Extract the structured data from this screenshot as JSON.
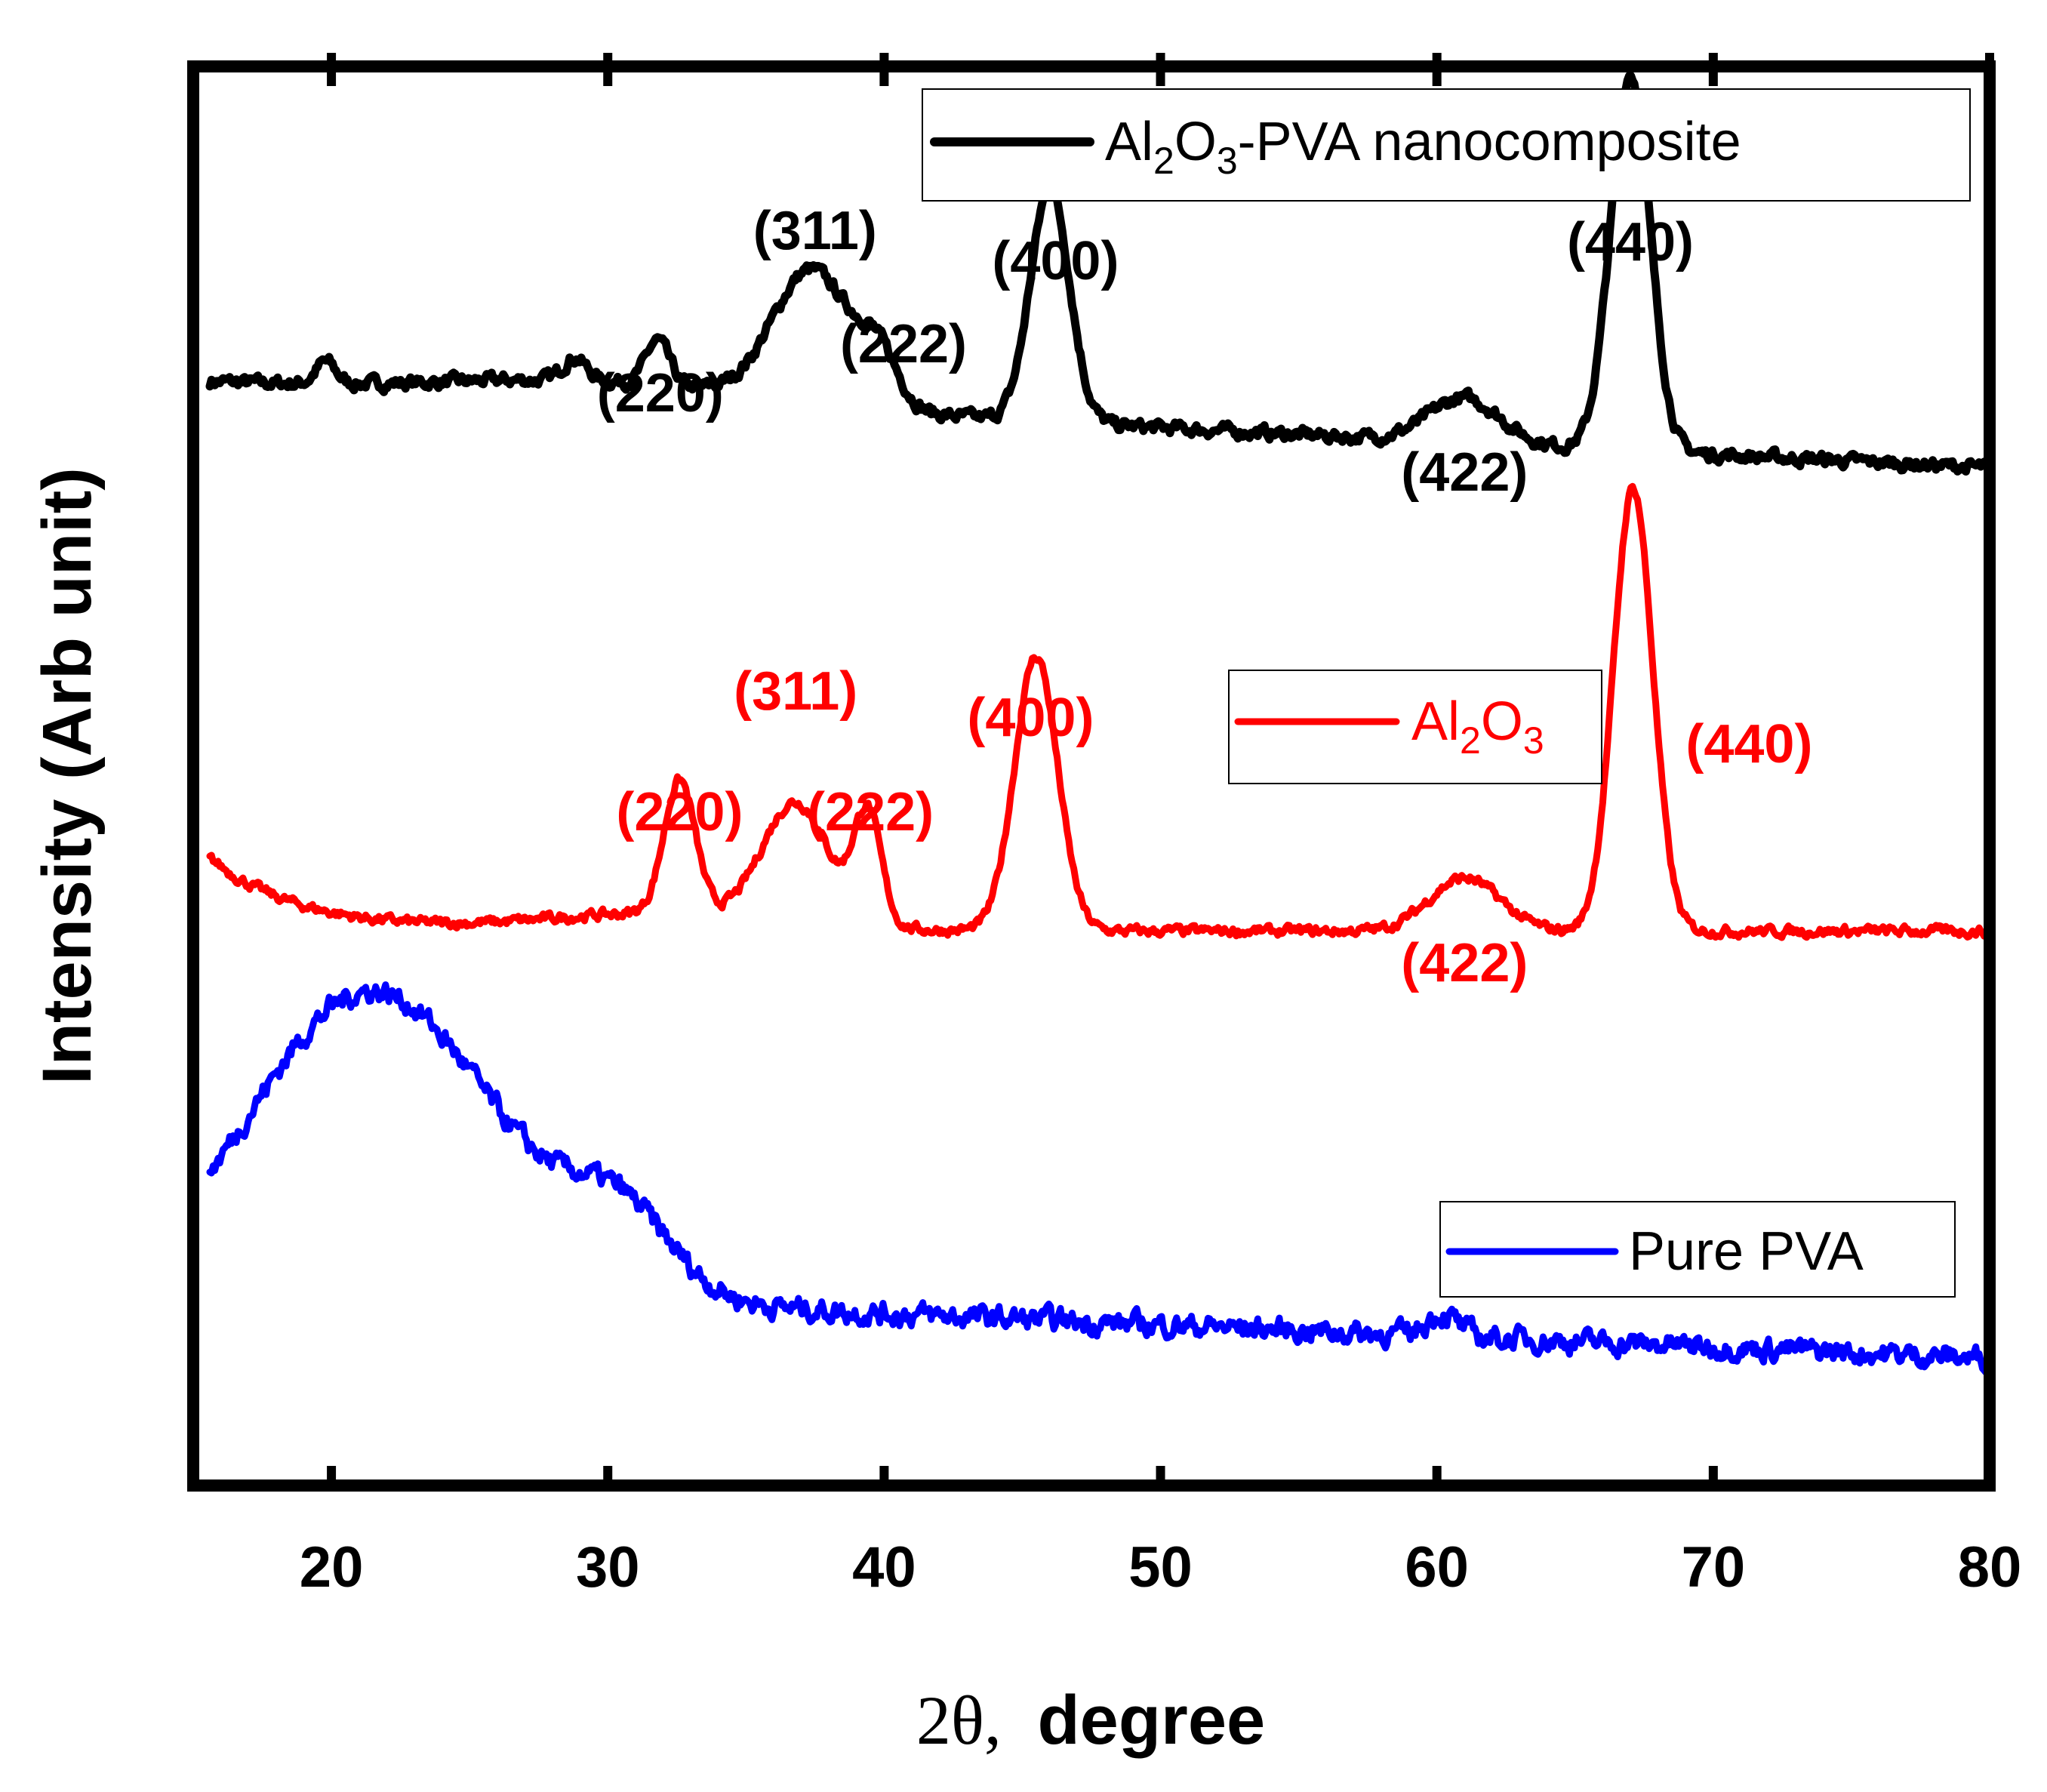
{
  "chart_data": {
    "type": "line",
    "title": "",
    "xlabel_prefix": "2θ,",
    "xlabel_main": "degree",
    "ylabel": "Intensity (Arb unit)",
    "xlim": [
      15,
      80
    ],
    "x_ticks": [
      "20",
      "30",
      "40",
      "50",
      "60",
      "70",
      "80"
    ],
    "y_ticks_shown": false,
    "series": [
      {
        "name": "Al2O3-PVA nanocomposite",
        "legend_parts": [
          "Al",
          "2",
          "O",
          "3",
          "-PVA nanocomposite"
        ],
        "color": "#000000",
        "offset": 2.0,
        "noise": 0.025,
        "peaks": [
          {
            "x": 19.8,
            "h": 0.05,
            "w": 0.5
          },
          {
            "x": 28.8,
            "h": 0.05,
            "w": 0.6
          },
          {
            "x": 31.8,
            "h": 0.1,
            "w": 0.6
          },
          {
            "x": 37.4,
            "h": 0.3,
            "w": 2.0
          },
          {
            "x": 39.8,
            "h": 0.1,
            "w": 1.0
          },
          {
            "x": 46.0,
            "h": 0.53,
            "w": 1.0
          },
          {
            "x": 61.0,
            "h": 0.1,
            "w": 1.8
          },
          {
            "x": 67.0,
            "h": 0.85,
            "w": 1.0
          }
        ],
        "annotations": [
          {
            "label": "(220)",
            "x": 31.9
          },
          {
            "label": "(311)",
            "x": 37.5
          },
          {
            "label": "(222)",
            "x": 40.7
          },
          {
            "label": "(400)",
            "x": 46.2
          },
          {
            "label": "(422)",
            "x": 61.0
          },
          {
            "label": "(440)",
            "x": 67.0
          }
        ]
      },
      {
        "name": "Al2O3",
        "legend_parts": [
          "Al",
          "2",
          "O",
          "3",
          ""
        ],
        "color": "#ff0000",
        "offset": 1.0,
        "noise": 0.02,
        "peaks": [
          {
            "x": 32.6,
            "h": 0.3,
            "w": 0.8
          },
          {
            "x": 36.8,
            "h": 0.27,
            "w": 1.7
          },
          {
            "x": 39.4,
            "h": 0.25,
            "w": 0.7
          },
          {
            "x": 45.5,
            "h": 0.62,
            "w": 1.1
          },
          {
            "x": 61.0,
            "h": 0.12,
            "w": 1.8
          },
          {
            "x": 67.1,
            "h": 1.0,
            "w": 1.0
          }
        ],
        "annotations": [
          {
            "label": "(220)",
            "x": 32.6
          },
          {
            "label": "(311)",
            "x": 36.8
          },
          {
            "label": "(222)",
            "x": 39.5
          },
          {
            "label": "(400)",
            "x": 45.3
          },
          {
            "label": "(422)",
            "x": 61.0
          },
          {
            "label": "(440)",
            "x": 71.3
          }
        ]
      },
      {
        "name": "Pure PVA",
        "legend_parts": [
          "Pure PVA"
        ],
        "color": "#0000ff",
        "offset": 0.0,
        "noise": 0.045,
        "peaks": [
          {
            "x": 20.3,
            "h": 0.45,
            "w": 5.5
          },
          {
            "x": 24.0,
            "h": 0.3,
            "w": 6.0
          },
          {
            "x": 30.5,
            "h": 0.15,
            "w": 2.5
          },
          {
            "x": 60.2,
            "h": 0.05,
            "w": 0.8
          }
        ],
        "annotations": []
      }
    ]
  }
}
